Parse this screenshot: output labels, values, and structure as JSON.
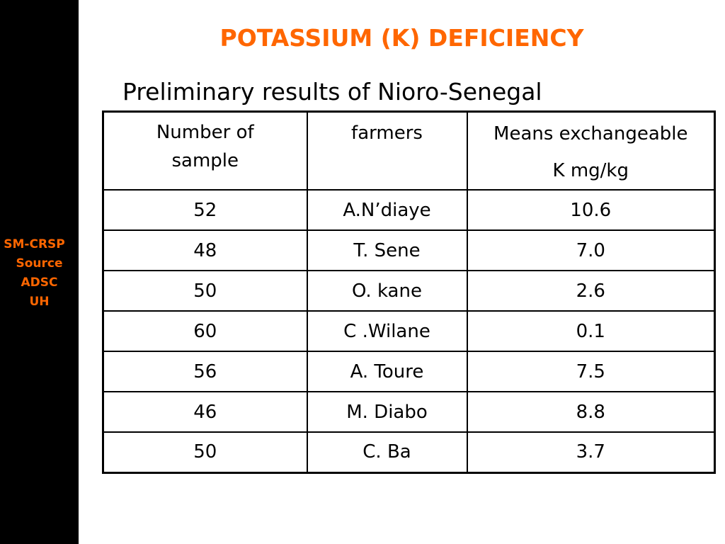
{
  "sidebar": {
    "lines": [
      "SM-CRSP",
      "Source",
      "ADSC",
      "UH"
    ]
  },
  "title": "POTASSIUM (K) DEFICIENCY",
  "subtitle": "Preliminary results of Nioro-Senegal",
  "table": {
    "headers": [
      [
        "Number of",
        "sample"
      ],
      [
        "farmers"
      ],
      [
        "Means exchangeable",
        "K  mg/kg"
      ]
    ],
    "rows": [
      [
        "52",
        "A.N’diaye",
        "10.6"
      ],
      [
        "48",
        "T. Sene",
        "7.0"
      ],
      [
        "50",
        "O. kane",
        "2.6"
      ],
      [
        "60",
        "C .Wilane",
        "0.1"
      ],
      [
        "56",
        "A. Toure",
        "7.5"
      ],
      [
        "46",
        "M. Diabo",
        "8.8"
      ],
      [
        "50",
        "C. Ba",
        "3.7"
      ]
    ]
  },
  "colors": {
    "accent": "#ff6600",
    "sidebar_bg": "#000000",
    "background": "#ffffff",
    "text": "#000000"
  }
}
